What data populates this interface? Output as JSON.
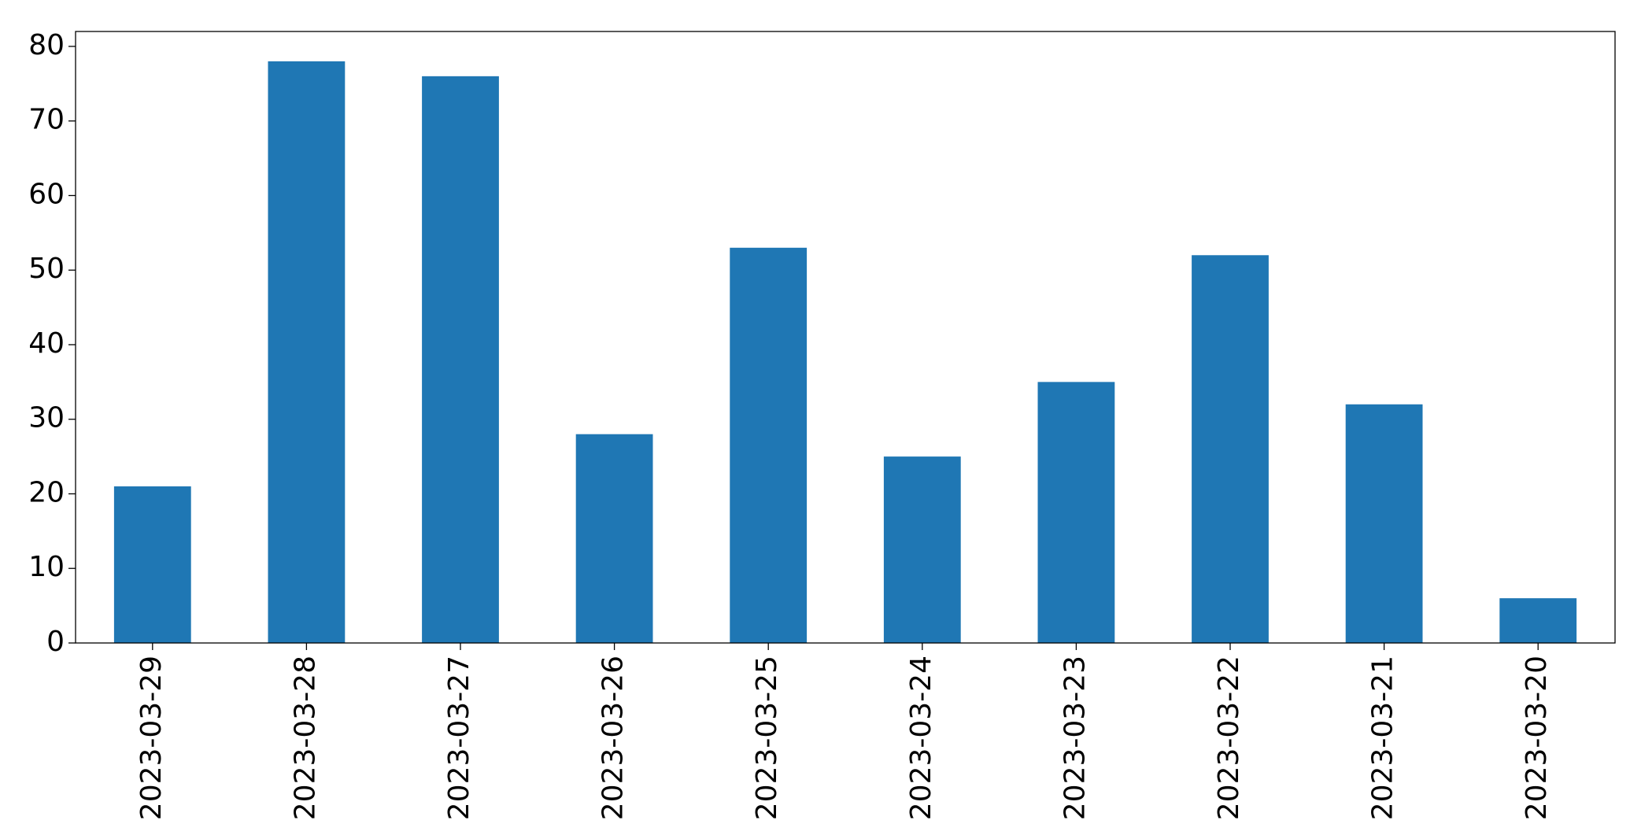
{
  "chart_data": {
    "type": "bar",
    "categories": [
      "2023-03-29",
      "2023-03-28",
      "2023-03-27",
      "2023-03-26",
      "2023-03-25",
      "2023-03-24",
      "2023-03-23",
      "2023-03-22",
      "2023-03-21",
      "2023-03-20"
    ],
    "values": [
      21,
      78,
      76,
      28,
      53,
      25,
      35,
      52,
      32,
      6
    ],
    "color": "#1f77b4",
    "ylim": [
      0,
      82
    ],
    "yticks": [
      0,
      10,
      20,
      30,
      40,
      50,
      60,
      70,
      80
    ],
    "grid": false
  }
}
